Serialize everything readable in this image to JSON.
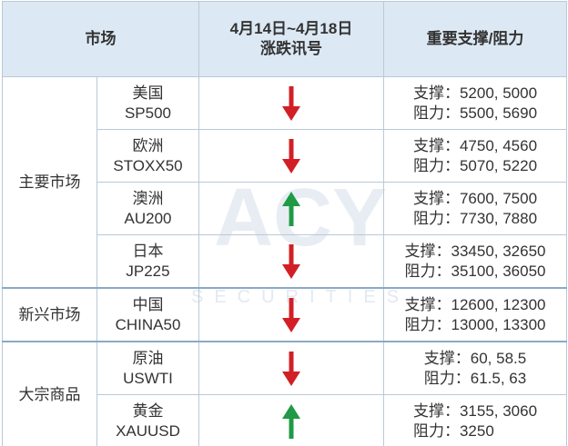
{
  "table": {
    "header": [
      "市场",
      [
        "4月14日~4月18日",
        "涨跌讯号"
      ],
      "重要支撑/阻力"
    ],
    "groups": [
      {
        "name": "主要市场",
        "rows": [
          {
            "name": "美国",
            "code": "SP500",
            "signal": "down",
            "support": "支撑：5200, 5000",
            "resistance": "阻力：5500, 5690"
          },
          {
            "name": "欧洲",
            "code": "STOXX50",
            "signal": "down",
            "support": "支撑：4750, 4560",
            "resistance": "阻力：5070, 5220"
          },
          {
            "name": "澳洲",
            "code": "AU200",
            "signal": "up",
            "support": "支撑：7600, 7500",
            "resistance": "阻力：7730, 7880"
          },
          {
            "name": "日本",
            "code": "JP225",
            "signal": "down",
            "support": "支撑：33450, 32650",
            "resistance": "阻力：35100, 36050"
          }
        ]
      },
      {
        "name": "新兴市场",
        "rows": [
          {
            "name": "中国",
            "code": "CHINA50",
            "signal": "down",
            "support": "支撑：12600, 12300",
            "resistance": "阻力：13000, 13300"
          }
        ]
      },
      {
        "name": "大宗商品",
        "rows": [
          {
            "name": "原油",
            "code": "USWTI",
            "signal": "down",
            "support": "支撑：60, 58.5",
            "resistance": "阻力：61.5, 63"
          },
          {
            "name": "黄金",
            "code": "XAUUSD",
            "signal": "up",
            "support": "支撑：3155, 3060",
            "resistance": "阻力：3250"
          }
        ]
      }
    ],
    "watermark": [
      "ACY",
      "SECURITIES"
    ]
  }
}
